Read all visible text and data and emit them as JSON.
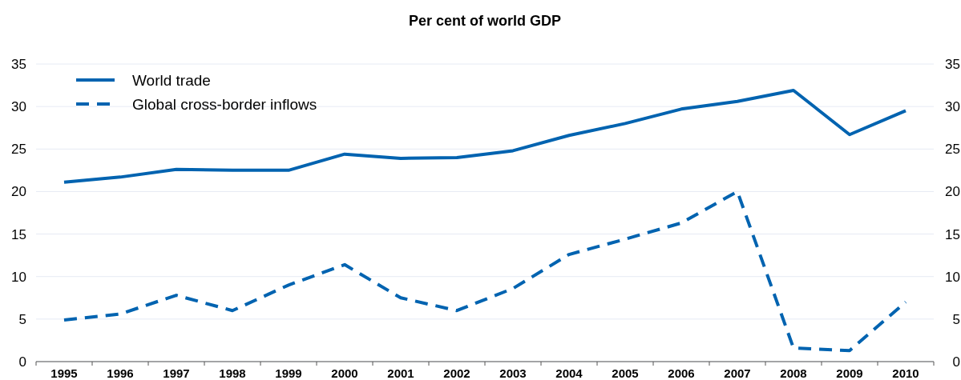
{
  "chart_data": {
    "type": "line",
    "title": "Per cent of world GDP",
    "categories": [
      "1995",
      "1996",
      "1997",
      "1998",
      "1999",
      "2000",
      "2001",
      "2002",
      "2003",
      "2004",
      "2005",
      "2006",
      "2007",
      "2008",
      "2009",
      "2010"
    ],
    "series": [
      {
        "name": "World trade",
        "color": "#0063b0",
        "line_style": "solid",
        "values": [
          21.1,
          21.7,
          22.6,
          22.5,
          22.5,
          24.4,
          23.9,
          24.0,
          24.8,
          26.6,
          28.0,
          29.7,
          30.6,
          31.9,
          26.7,
          29.5
        ]
      },
      {
        "name": "Global cross-border inflows",
        "color": "#0063b0",
        "line_style": "dashed",
        "values": [
          4.9,
          5.6,
          7.8,
          6.0,
          9.0,
          11.4,
          7.5,
          6.0,
          8.6,
          12.6,
          14.4,
          16.3,
          20.0,
          1.6,
          1.3,
          7.0
        ]
      }
    ],
    "ylim": [
      0,
      35
    ],
    "yticks": [
      0,
      5,
      10,
      15,
      20,
      25,
      30,
      35
    ],
    "y2lim": [
      0,
      35
    ],
    "y2ticks": [
      0,
      5,
      10,
      15,
      20,
      25,
      30,
      35
    ],
    "grid": "y",
    "legend": "top left",
    "marker": "none"
  }
}
